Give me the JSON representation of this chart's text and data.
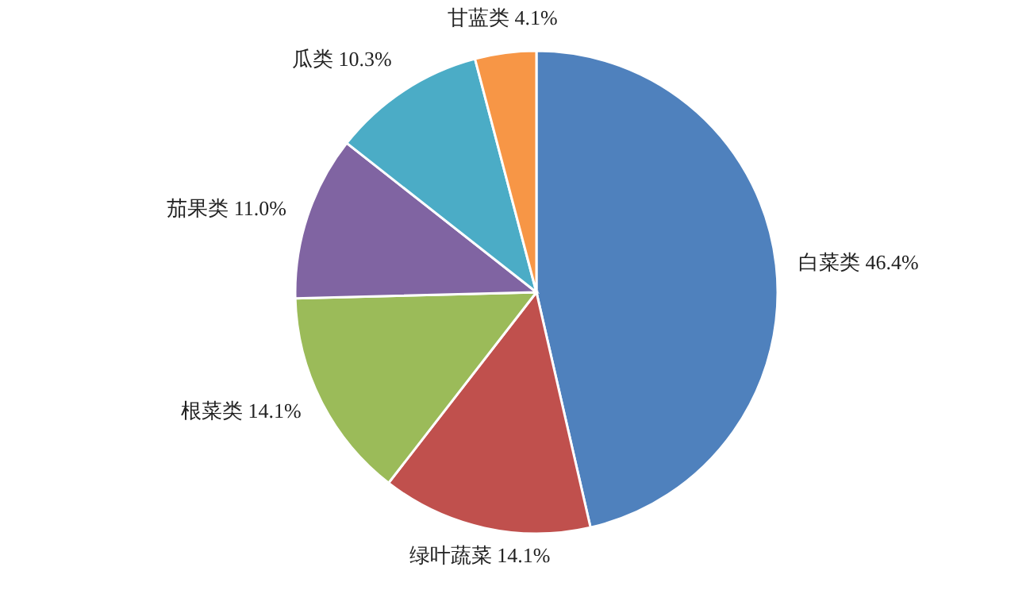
{
  "chart_data": {
    "type": "pie",
    "categories": [
      "白菜类",
      "绿叶蔬菜",
      "根菜类",
      "茄果类",
      "瓜类",
      "甘蓝类"
    ],
    "values": [
      46.4,
      14.1,
      14.1,
      11.0,
      10.3,
      4.1
    ],
    "value_labels": [
      "46.4%",
      "14.1%",
      "14.1%",
      "11.0%",
      "10.3%",
      "4.1%"
    ],
    "colors": [
      "#4f81bd",
      "#c0504d",
      "#9bbb59",
      "#8064a2",
      "#4bacc6",
      "#f79646"
    ]
  }
}
